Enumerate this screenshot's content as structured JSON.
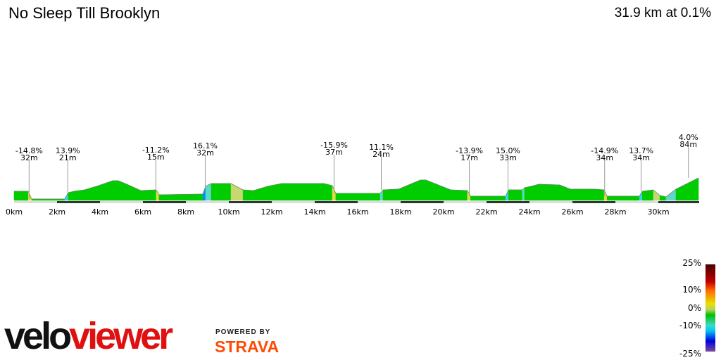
{
  "header": {
    "title": "No Sleep Till Brooklyn",
    "summary": "31.9 km at 0.1%"
  },
  "chart_data": {
    "type": "area",
    "title": "No Sleep Till Brooklyn",
    "xlabel": "",
    "ylabel": "",
    "xlim": [
      0,
      31.9
    ],
    "x_ticks": [
      "0km",
      "2km",
      "4km",
      "6km",
      "8km",
      "10km",
      "12km",
      "14km",
      "16km",
      "18km",
      "20km",
      "22km",
      "24km",
      "26km",
      "28km",
      "30km"
    ],
    "x_tick_values": [
      0,
      2,
      4,
      6,
      8,
      10,
      12,
      14,
      16,
      18,
      20,
      22,
      24,
      26,
      28,
      30
    ],
    "profile_km": [
      0,
      0.66,
      0.82,
      2.36,
      2.52,
      2.79,
      3.28,
      3.93,
      4.59,
      4.85,
      5.25,
      5.9,
      6.62,
      6.75,
      8.79,
      8.92,
      9.18,
      10.1,
      10.66,
      11.15,
      11.8,
      12.46,
      14.43,
      14.82,
      14.98,
      17.05,
      17.18,
      17.84,
      17.9,
      18.92,
      19.18,
      20.33,
      21.11,
      21.25,
      22.89,
      23.02,
      23.67,
      23.77,
      24.2,
      24.43,
      25.41,
      25.9,
      27.05,
      27.48,
      27.61,
      29.12,
      29.25,
      29.77,
      30.07,
      30.36,
      30.82,
      31.87
    ],
    "profile_elev": [
      13,
      13,
      2,
      2,
      11,
      13,
      15,
      21,
      28,
      28,
      23,
      14,
      15,
      8,
      9,
      20,
      24,
      24,
      15,
      14,
      20,
      24,
      24,
      21,
      10,
      10,
      15,
      16,
      16,
      29,
      29,
      15,
      14,
      6,
      6,
      15,
      15,
      18,
      21,
      23,
      22,
      16,
      16,
      15,
      6,
      6,
      13,
      15,
      7,
      5,
      16,
      32
    ],
    "annotations": [
      {
        "km": 0.7,
        "grade": "-14.8%",
        "length": "32m"
      },
      {
        "km": 2.5,
        "grade": "13.9%",
        "length": "21m"
      },
      {
        "km": 6.6,
        "grade": "-11.2%",
        "length": "15m"
      },
      {
        "km": 8.9,
        "grade": "16.1%",
        "length": "32m"
      },
      {
        "km": 14.9,
        "grade": "-15.9%",
        "length": "37m"
      },
      {
        "km": 17.1,
        "grade": "11.1%",
        "length": "24m"
      },
      {
        "km": 21.2,
        "grade": "-13.9%",
        "length": "17m"
      },
      {
        "km": 23.0,
        "grade": "15.0%",
        "length": "33m"
      },
      {
        "km": 27.5,
        "grade": "-14.9%",
        "length": "34m"
      },
      {
        "km": 29.2,
        "grade": "13.7%",
        "length": "34m"
      },
      {
        "km": 31.4,
        "grade": "4.0%",
        "length": "84m"
      }
    ],
    "legend": {
      "labels": [
        "25%",
        "10%",
        "0%",
        "-10%",
        "-25%"
      ],
      "colors": [
        "#4a0000",
        "#ff6a00",
        "#00c000",
        "#00c8f0",
        "#7a4a9a"
      ]
    },
    "grid": false
  },
  "branding": {
    "logo_part1": "velo",
    "logo_part2": "viewer",
    "powered_by": "POWERED BY",
    "strava": "STRAVA",
    "strava_color": "#fc4c02"
  }
}
